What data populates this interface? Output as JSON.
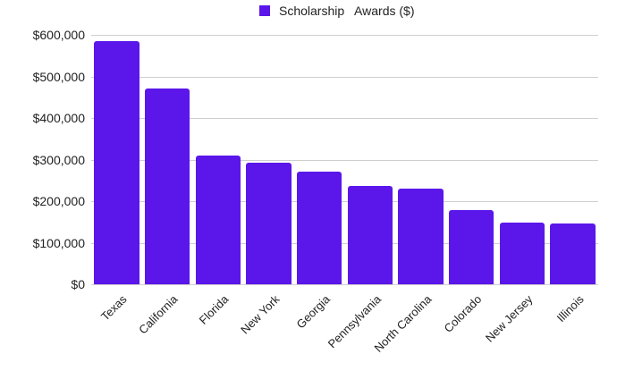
{
  "chart_data": {
    "type": "bar",
    "title": "",
    "legend": [
      "Scholarship Awards ($)"
    ],
    "legend_position": "top",
    "xlabel": "",
    "ylabel": "",
    "categories": [
      "Texas",
      "California",
      "Florida",
      "New York",
      "Georgia",
      "Pennsylvania",
      "North Carolina",
      "Colorado",
      "New Jersey",
      "Illinois"
    ],
    "series": [
      {
        "name": "Scholarship Awards ($)",
        "color": "#5b16ea",
        "values": [
          585000,
          471000,
          310000,
          292000,
          271000,
          237000,
          230000,
          178000,
          148000,
          146000
        ]
      }
    ],
    "ylim": [
      0,
      600000
    ],
    "yticks": [
      "$0",
      "$100,000",
      "$200,000",
      "$300,000",
      "$400,000",
      "$500,000",
      "$600,000"
    ],
    "grid": true
  },
  "legend": {
    "label": "Scholarship   Awards ($)"
  }
}
